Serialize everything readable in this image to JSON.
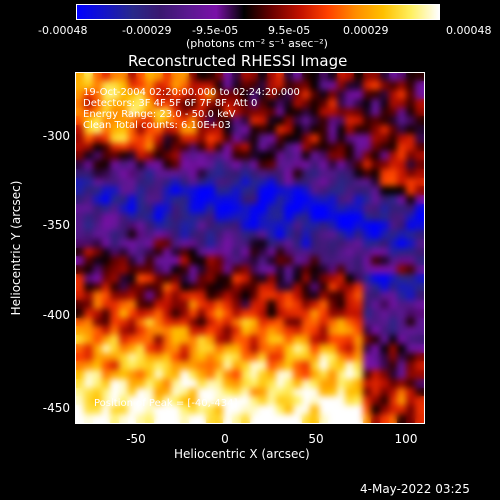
{
  "colorbar": {
    "tick_labels": [
      "-0.00048",
      "-0.00029",
      "-9.5e-05",
      "9.5e-05",
      "0.00029",
      "0.00048"
    ],
    "units_label": "(photons cm⁻² s⁻¹ asec⁻²)",
    "colormap": [
      "#0000ff",
      "#1414c8",
      "#28288a",
      "#3a1870",
      "#5a1890",
      "#7a10a8",
      "#000000",
      "#6a0000",
      "#c01000",
      "#ff4000",
      "#ff8c00",
      "#ffc000",
      "#fff060",
      "#ffffff"
    ]
  },
  "image": {
    "title": "Reconstructed RHESSI Image",
    "info_lines": [
      "19-Oct-2004 02:20:00.000 to 02:24:20.000",
      "Detectors: 3F 4F 5F 6F 7F 8F, Att 0",
      "Energy Range: 23.0 - 50.0 keV",
      "Clean     Total counts: 6.10E+03"
    ],
    "peak_label": "Position of Peak = [-40,-434]",
    "x_axis_label": "Heliocentric X (arcsec)",
    "y_axis_label": "Heliocentric Y (arcsec)",
    "x_ticks": [
      "-50",
      "0",
      "50",
      "100"
    ],
    "y_ticks": [
      "-300",
      "-350",
      "-400",
      "-450"
    ],
    "date_stamp": "4-May-2022 03:25"
  }
}
